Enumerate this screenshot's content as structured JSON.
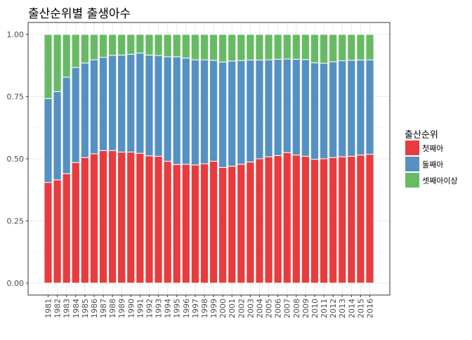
{
  "chart_data": {
    "type": "bar",
    "stacked": "fill",
    "title": "출산순위별 출생아수",
    "xlabel": "",
    "ylabel": "",
    "ylim": [
      0,
      1
    ],
    "yticks": [
      "0.00",
      "0.25",
      "0.50",
      "0.75",
      "1.00"
    ],
    "grid": true,
    "legend": {
      "title": "출산순위",
      "position": "right"
    },
    "categories": [
      "1981",
      "1982",
      "1983",
      "1984",
      "1985",
      "1986",
      "1987",
      "1988",
      "1989",
      "1990",
      "1991",
      "1992",
      "1993",
      "1994",
      "1995",
      "1996",
      "1997",
      "1998",
      "1999",
      "2000",
      "2001",
      "2002",
      "2003",
      "2004",
      "2005",
      "2006",
      "2007",
      "2008",
      "2009",
      "2010",
      "2011",
      "2012",
      "2013",
      "2014",
      "2015",
      "2016"
    ],
    "series": [
      {
        "name": "첫째아",
        "color": "#E41A1C",
        "values": [
          0.405,
          0.415,
          0.44,
          0.485,
          0.505,
          0.52,
          0.533,
          0.533,
          0.527,
          0.527,
          0.522,
          0.512,
          0.51,
          0.49,
          0.477,
          0.478,
          0.475,
          0.48,
          0.49,
          0.465,
          0.47,
          0.478,
          0.487,
          0.5,
          0.508,
          0.513,
          0.525,
          0.515,
          0.51,
          0.498,
          0.5,
          0.505,
          0.508,
          0.51,
          0.515,
          0.518
        ]
      },
      {
        "name": "둘째아",
        "color": "#377EB8",
        "values": [
          0.337,
          0.355,
          0.388,
          0.382,
          0.38,
          0.378,
          0.375,
          0.383,
          0.39,
          0.393,
          0.403,
          0.405,
          0.405,
          0.42,
          0.433,
          0.427,
          0.423,
          0.418,
          0.406,
          0.424,
          0.423,
          0.417,
          0.41,
          0.397,
          0.39,
          0.387,
          0.376,
          0.385,
          0.389,
          0.388,
          0.384,
          0.385,
          0.386,
          0.386,
          0.382,
          0.38
        ]
      },
      {
        "name": "셋째아이상",
        "color": "#4DAF4A",
        "values": [
          0.258,
          0.23,
          0.172,
          0.133,
          0.115,
          0.102,
          0.092,
          0.084,
          0.083,
          0.08,
          0.075,
          0.083,
          0.085,
          0.09,
          0.09,
          0.095,
          0.102,
          0.102,
          0.104,
          0.111,
          0.107,
          0.105,
          0.103,
          0.103,
          0.102,
          0.1,
          0.099,
          0.1,
          0.101,
          0.114,
          0.116,
          0.11,
          0.106,
          0.104,
          0.103,
          0.102
        ]
      }
    ]
  }
}
